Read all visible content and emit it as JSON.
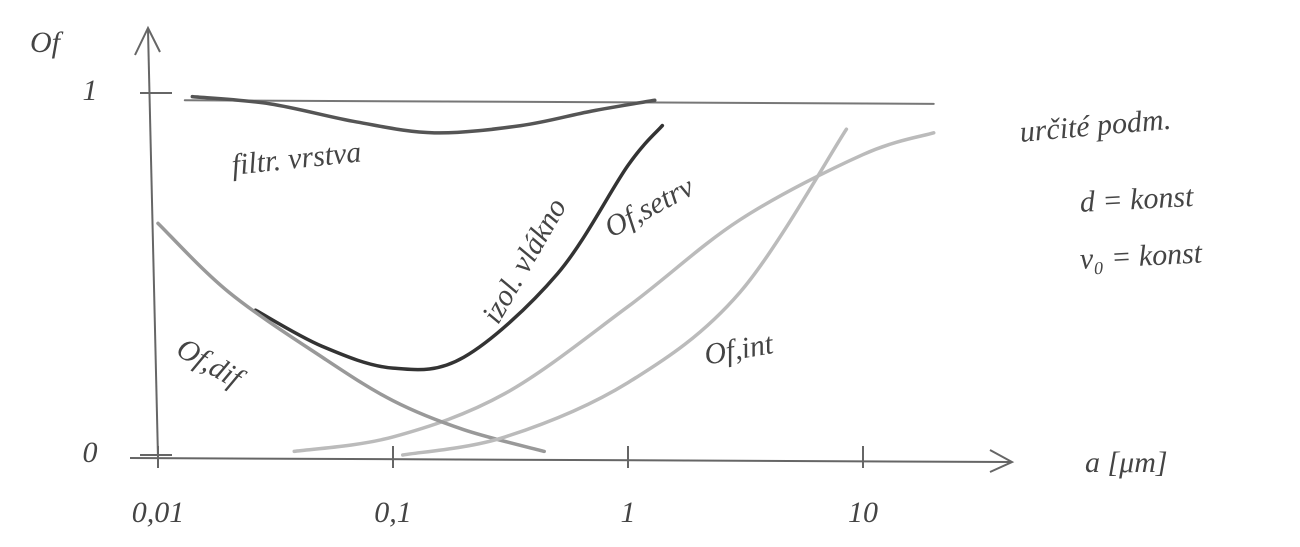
{
  "chart_data": {
    "type": "line",
    "y_label": "Of",
    "x_label": "a [μm]",
    "x_log": true,
    "xlim": [
      0.01,
      40
    ],
    "ylim": [
      0,
      1.15
    ],
    "xticks": [
      {
        "value": 0.01,
        "label": "0,01"
      },
      {
        "value": 0.1,
        "label": "0,1"
      },
      1,
      10
    ],
    "yticks": [
      0,
      1
    ],
    "annotations": [
      "určité podm.",
      "d = konst",
      "v₀ = konst"
    ],
    "series": [
      {
        "color": "#777777",
        "x": [
          0.013,
          20
        ],
        "values": [
          0.98,
          0.97
        ]
      },
      {
        "name": "filtr. vrstva",
        "color": "#555555",
        "x": [
          0.014,
          0.03,
          0.07,
          0.15,
          0.35,
          0.7,
          1.3
        ],
        "values": [
          0.99,
          0.97,
          0.92,
          0.89,
          0.91,
          0.95,
          0.98
        ]
      },
      {
        "name": "izol. vlákno",
        "color": "#333333",
        "x": [
          0.026,
          0.05,
          0.1,
          0.2,
          0.5,
          1,
          1.4
        ],
        "values": [
          0.4,
          0.3,
          0.24,
          0.27,
          0.5,
          0.8,
          0.91
        ]
      },
      {
        "name": "Of,setrv",
        "color": "#bbbbbb",
        "x": [
          0.038,
          0.1,
          0.3,
          1,
          3,
          10,
          20
        ],
        "values": [
          0.01,
          0.05,
          0.17,
          0.41,
          0.65,
          0.83,
          0.89
        ]
      },
      {
        "name": "Of,dif",
        "color": "#999999",
        "x": [
          0.01,
          0.02,
          0.05,
          0.1,
          0.2,
          0.44
        ],
        "values": [
          0.64,
          0.45,
          0.27,
          0.15,
          0.07,
          0.01
        ]
      },
      {
        "name": "Of,int",
        "color": "#bbbbbb",
        "x": [
          0.11,
          0.3,
          1,
          3,
          8.5
        ],
        "values": [
          0.0,
          0.05,
          0.2,
          0.45,
          0.9
        ]
      }
    ]
  }
}
